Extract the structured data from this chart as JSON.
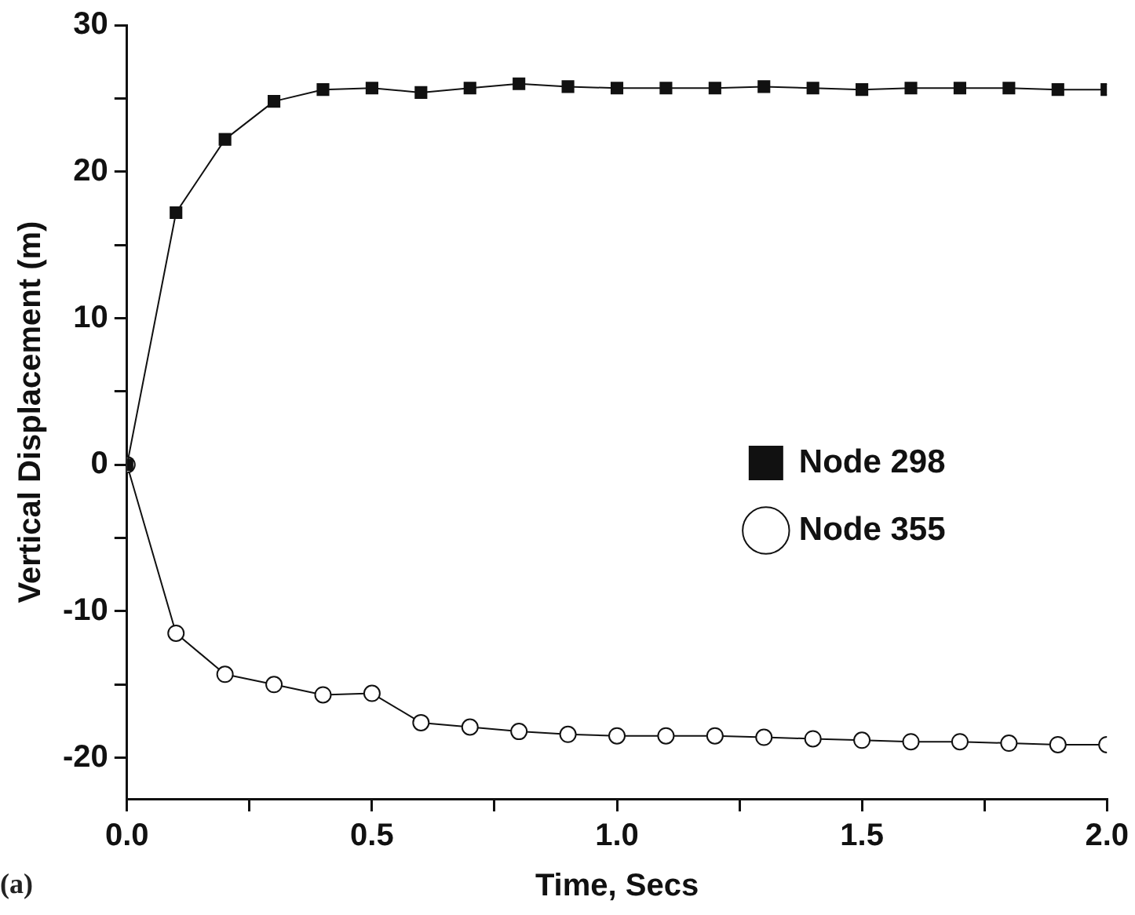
{
  "chart_data": {
    "type": "line",
    "xlabel": "Time, Secs",
    "ylabel": "Vertical Displacement (m)",
    "annotations": [
      "(a)"
    ],
    "x": [
      0,
      0.1,
      0.2,
      0.3,
      0.4,
      0.5,
      0.6,
      0.7,
      0.8,
      0.9,
      1.0,
      1.1,
      1.2,
      1.3,
      1.4,
      1.5,
      1.6,
      1.7,
      1.8,
      1.9,
      2.0
    ],
    "series": [
      {
        "name": "Node 298",
        "color": "#111111",
        "marker": "square",
        "values": [
          0,
          17.2,
          22.2,
          24.8,
          25.6,
          25.7,
          25.4,
          25.7,
          26.0,
          25.8,
          25.7,
          25.7,
          25.7,
          25.8,
          25.7,
          25.6,
          25.7,
          25.7,
          25.7,
          25.6,
          25.6
        ]
      },
      {
        "name": "Node 355",
        "color": "#111111",
        "marker": "circle",
        "values": [
          0,
          -11.5,
          -14.3,
          -15.0,
          -15.7,
          -15.6,
          -17.6,
          -17.9,
          -18.2,
          -18.4,
          -18.5,
          -18.5,
          -18.5,
          -18.6,
          -18.7,
          -18.8,
          -18.9,
          -18.9,
          -19.0,
          -19.1,
          -19.1
        ]
      }
    ],
    "xlim": [
      0,
      2.0
    ],
    "xticks": [
      {
        "value": 0,
        "label": "0.0"
      },
      {
        "value": 0.25,
        "label": null
      },
      {
        "value": 0.5,
        "label": "0.5"
      },
      {
        "value": 0.75,
        "label": null
      },
      {
        "value": 1.0,
        "label": "1.0"
      },
      {
        "value": 1.25,
        "label": null
      },
      {
        "value": 1.5,
        "label": "1.5"
      },
      {
        "value": 1.75,
        "label": null
      },
      {
        "value": 2.0,
        "label": "2.0"
      }
    ],
    "ylim": [
      -22.8,
      30
    ],
    "yticks": [
      {
        "value": -20,
        "label": "-20"
      },
      {
        "value": -15,
        "label": null
      },
      {
        "value": -10,
        "label": "-10"
      },
      {
        "value": -5,
        "label": null
      },
      0,
      {
        "value": 5,
        "label": null
      },
      10,
      {
        "value": 15,
        "label": null
      },
      20,
      {
        "value": 25,
        "label": null
      },
      30
    ],
    "grid": false,
    "legend": "right",
    "line_style": "solid"
  }
}
